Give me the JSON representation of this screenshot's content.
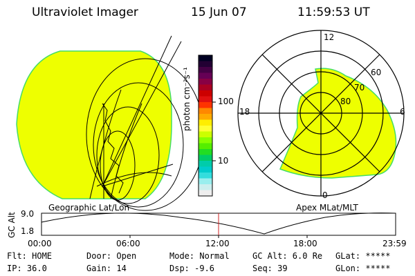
{
  "header": {
    "instrument": "Ultraviolet Imager",
    "date": "15 Jun 07",
    "time": "11:59:53 UT"
  },
  "colorbar": {
    "unit_label": "photon cm⁻²s⁻¹",
    "ticks": [
      "100",
      "10"
    ],
    "colors": [
      "#000022",
      "#220033",
      "#440044",
      "#660055",
      "#880044",
      "#aa0022",
      "#cc0000",
      "#e01010",
      "#ff3300",
      "#ff8800",
      "#ffaa00",
      "#ffee00",
      "#ffff33",
      "#ccff00",
      "#88ff00",
      "#55ee00",
      "#22dd22",
      "#00cc66",
      "#00ccaa",
      "#00cccc",
      "#33dddd",
      "#99eeee",
      "#cceeee",
      "#eeeeee"
    ]
  },
  "polar_plot": {
    "mlt_labels": {
      "top": "12",
      "left": "18",
      "right": "6",
      "bottom": "0"
    },
    "lat_labels": [
      "60",
      "70",
      "80"
    ]
  },
  "map_labels": {
    "left": "Geographic Lat/Lon",
    "right": "Apex MLat/MLT"
  },
  "altitude_plot": {
    "ylabel": "GC Alt",
    "yticks": [
      "9.0",
      "1.8"
    ],
    "xticks": [
      "00:00",
      "06:00",
      "12:00",
      "18:00",
      "23:59"
    ],
    "current_time_marker": "12:00"
  },
  "status": {
    "flt": "Flt: HOME",
    "ip": "IP: 36.0",
    "door": "Door: Open",
    "gain": "Gain: 14",
    "mode": "Mode: Normal",
    "dsp": "Dsp:   -9.6",
    "gcalt": "GC Alt: 6.0 Re",
    "seq": "Seq: 39",
    "glat": "GLat: *****",
    "glon": "GLon: *****"
  },
  "colors": {
    "aurora_fill": "#eeff00",
    "aurora_edge": "#33dd55",
    "marker": "#cc2222"
  }
}
